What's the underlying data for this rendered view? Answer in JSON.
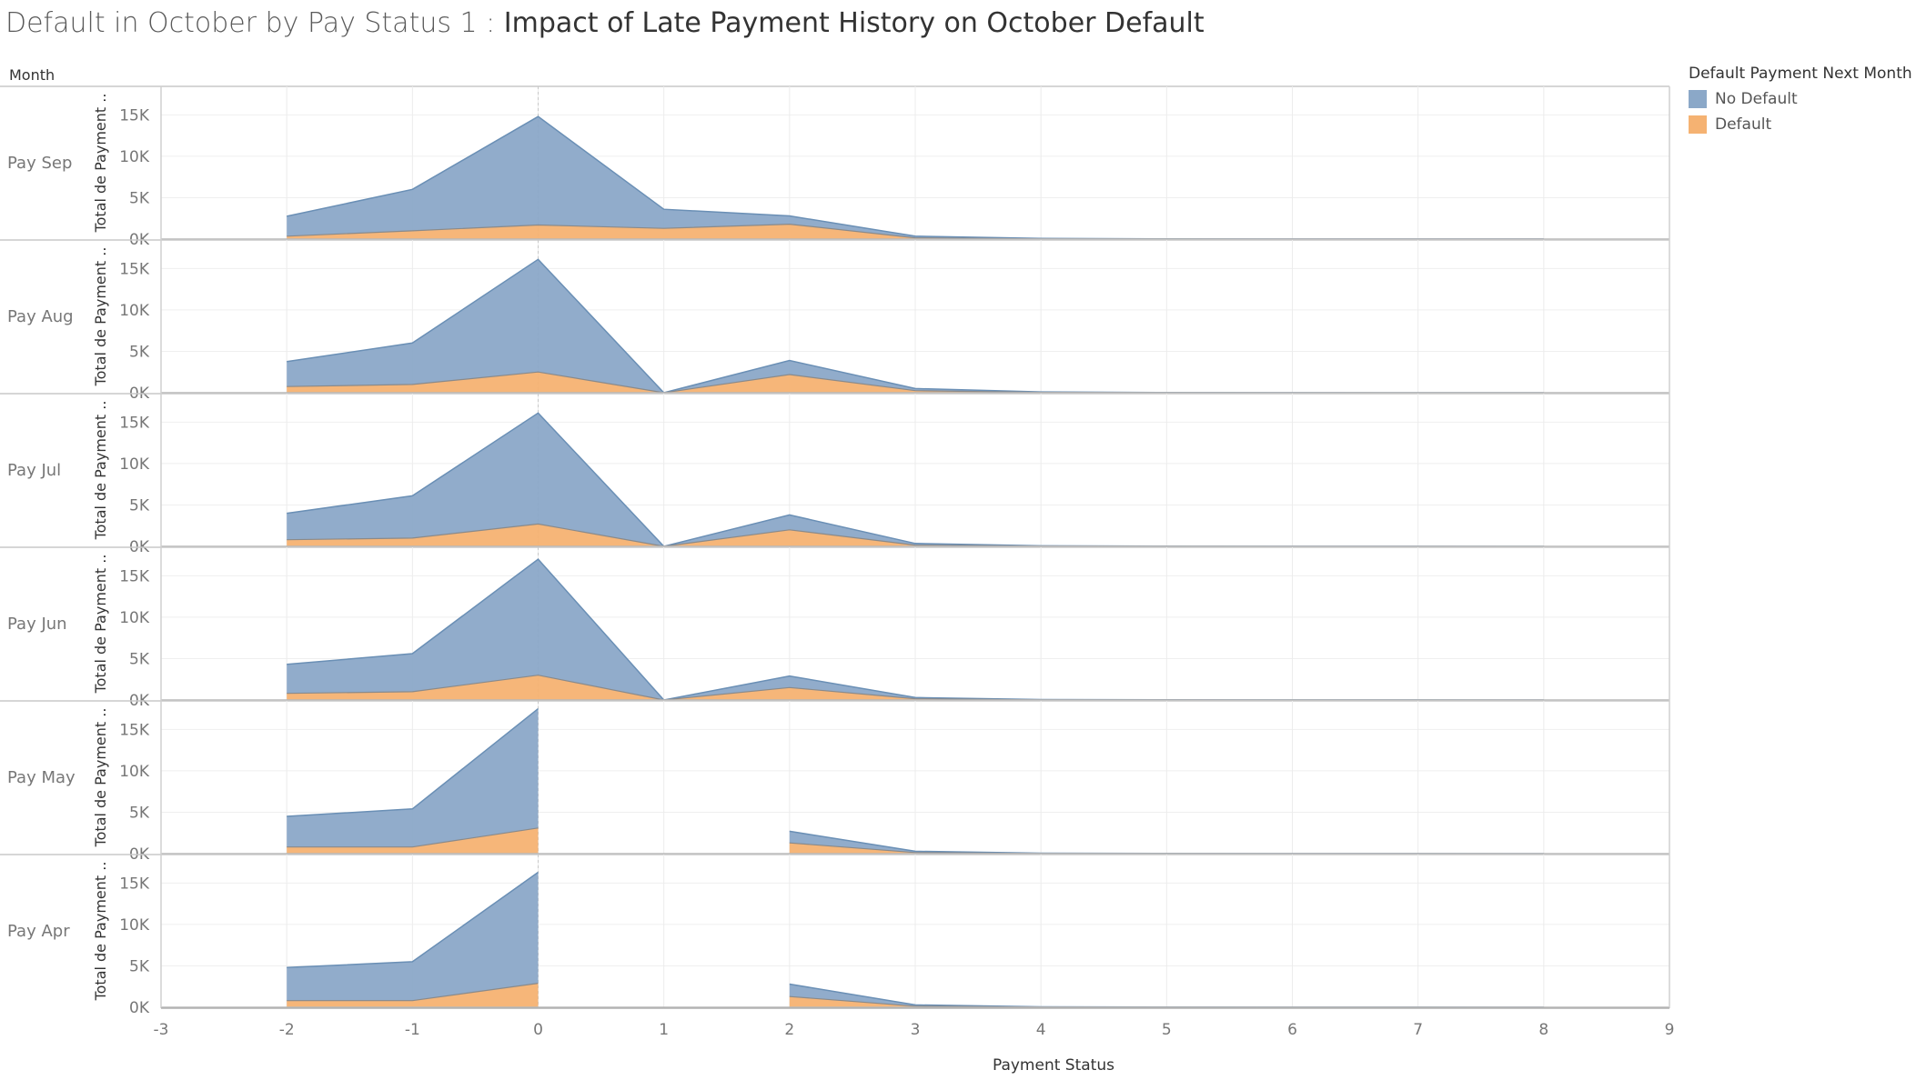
{
  "title_main": "Default in October by Pay Status 1 :",
  "title_sub": "Impact of Late Payment History on October Default",
  "colors": {
    "no_default": "#8ba8c8",
    "no_default_line": "#6a8fb5",
    "default": "#f5b272",
    "default_line": "#dd8a3c"
  },
  "legend": {
    "title": "Default Payment Next Month",
    "items": [
      {
        "label": "No Default",
        "color": "#8ba8c8"
      },
      {
        "label": "Default",
        "color": "#f5b272"
      }
    ]
  },
  "chart_data": {
    "type": "area",
    "row_header": "Month",
    "xlabel": "Payment Status",
    "ylabel": "Total de Payment ..",
    "xlim": [
      -3,
      9
    ],
    "x_ticks": [
      "-3",
      "-2",
      "-1",
      "0",
      "1",
      "2",
      "3",
      "4",
      "5",
      "6",
      "7",
      "8",
      "9"
    ],
    "ylim": [
      0,
      18000
    ],
    "y_ticks": [
      "0K",
      "5K",
      "10K",
      "15K"
    ],
    "stacked": true,
    "grid": true,
    "legend_position": "top-right",
    "x": [
      -2,
      -1,
      0,
      1,
      2,
      3,
      4,
      5,
      6,
      7,
      8
    ],
    "panels": [
      {
        "label": "Pay Sep",
        "series": [
          {
            "name": "No Default",
            "values": [
              2400,
              5000,
              13100,
              2300,
              1000,
              200,
              50,
              10,
              5,
              3,
              3
            ]
          },
          {
            "name": "Default",
            "values": [
              350,
              1000,
              1700,
              1300,
              1800,
              150,
              25,
              10,
              5,
              3,
              3
            ]
          }
        ]
      },
      {
        "label": "Pay Aug",
        "series": [
          {
            "name": "No Default",
            "values": [
              3000,
              5000,
              13600,
              0,
              1700,
              250,
              60,
              15,
              5,
              2,
              1
            ]
          },
          {
            "name": "Default",
            "values": [
              750,
              1000,
              2500,
              0,
              2200,
              250,
              40,
              10,
              5,
              2,
              1
            ]
          }
        ]
      },
      {
        "label": "Pay Jul",
        "series": [
          {
            "name": "No Default",
            "values": [
              3200,
              5100,
              13400,
              0,
              1800,
              200,
              40,
              10,
              5,
              5,
              2
            ]
          },
          {
            "name": "Default",
            "values": [
              800,
              1000,
              2700,
              0,
              2000,
              150,
              30,
              10,
              5,
              5,
              2
            ]
          }
        ]
      },
      {
        "label": "Pay Jun",
        "series": [
          {
            "name": "No Default",
            "values": [
              3500,
              4600,
              14000,
              0,
              1400,
              150,
              30,
              10,
              5,
              5,
              2
            ]
          },
          {
            "name": "Default",
            "values": [
              800,
              1000,
              3000,
              0,
              1500,
              150,
              20,
              10,
              5,
              5,
              2
            ]
          }
        ]
      },
      {
        "label": "Pay May",
        "series": [
          {
            "name": "No Default",
            "values": [
              3700,
              4600,
              14400,
              null,
              1400,
              150,
              35,
              10,
              5,
              5,
              2
            ]
          },
          {
            "name": "Default",
            "values": [
              800,
              800,
              3100,
              null,
              1300,
              130,
              25,
              10,
              5,
              5,
              2
            ]
          }
        ]
      },
      {
        "label": "Pay Apr",
        "series": [
          {
            "name": "No Default",
            "values": [
              4000,
              4700,
              13400,
              null,
              1500,
              150,
              30,
              10,
              5,
              5,
              2
            ]
          },
          {
            "name": "Default",
            "values": [
              800,
              800,
              2900,
              null,
              1300,
              130,
              20,
              10,
              5,
              5,
              2
            ]
          }
        ]
      }
    ]
  }
}
